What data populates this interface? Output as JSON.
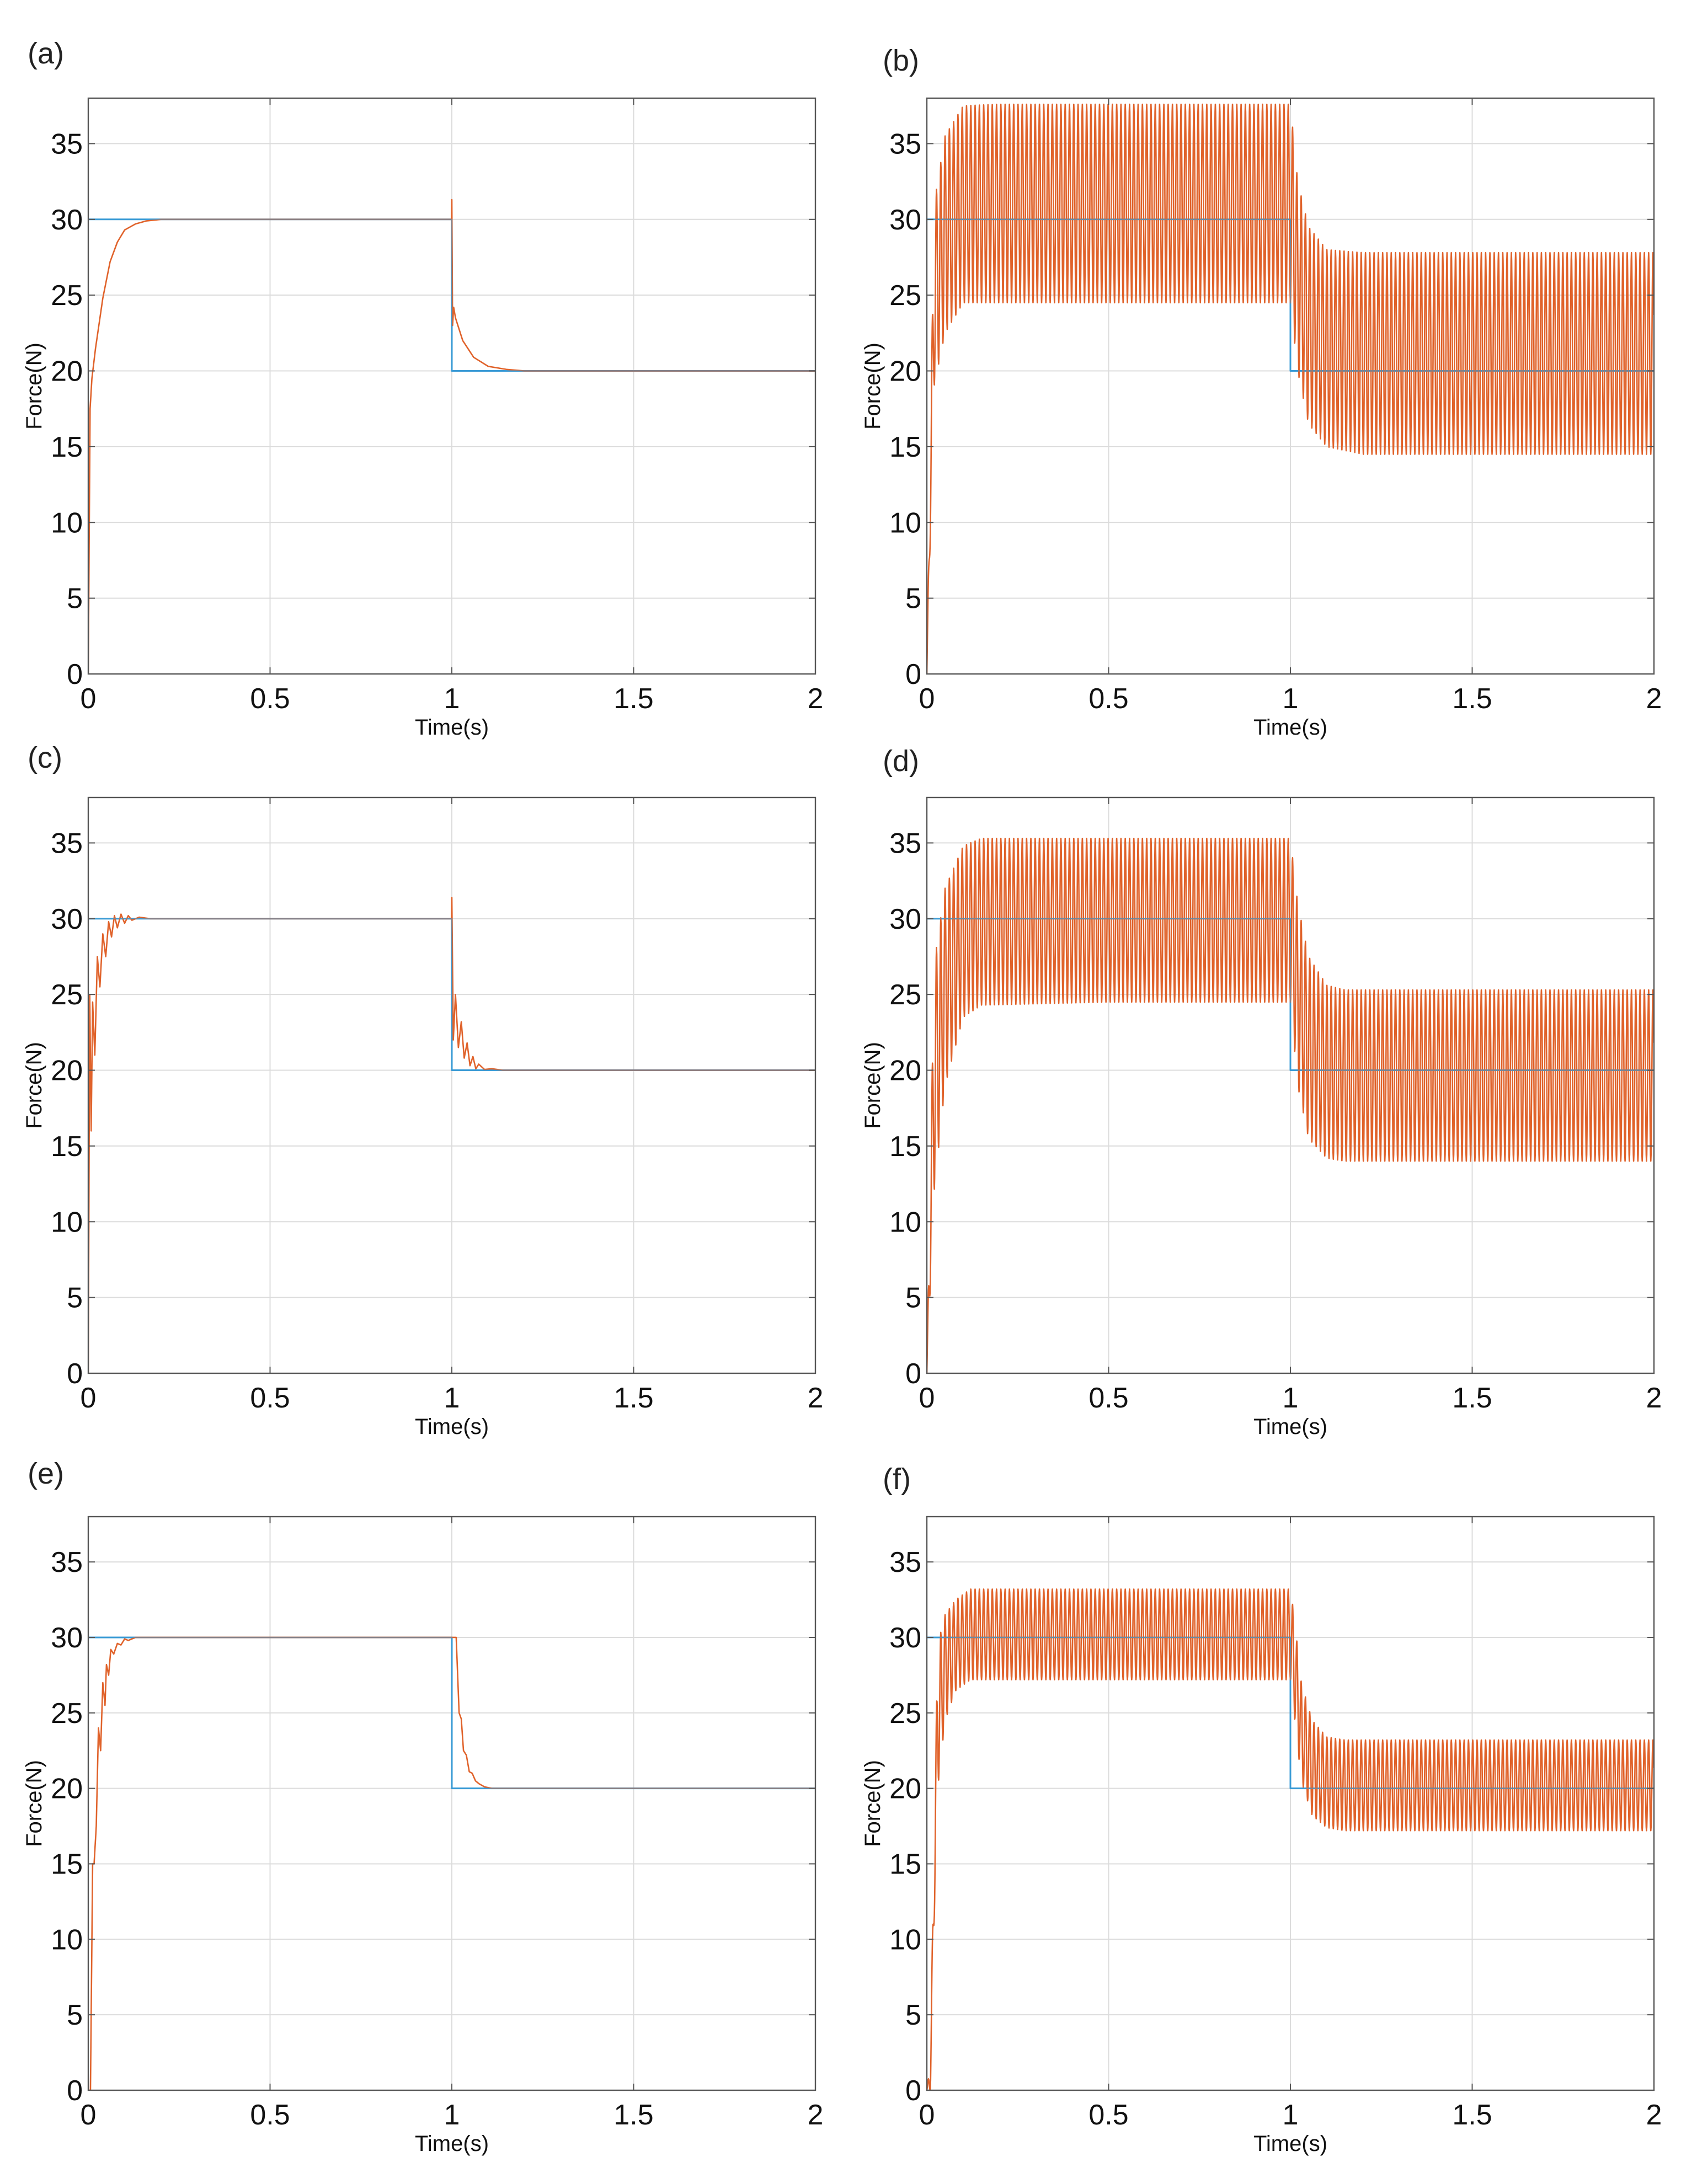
{
  "colors": {
    "reference": "#3a9bd6",
    "response": "#e0622a",
    "grid": "#dcdcdc",
    "frame": "#555555"
  },
  "chart_data": [
    {
      "id": "a",
      "panel_label": "(a)",
      "type": "line",
      "xlabel": "Time(s)",
      "ylabel": "Force(N)",
      "xlim": [
        0,
        2
      ],
      "ylim": [
        0,
        38
      ],
      "xticks": [
        0,
        0.5,
        1,
        1.5,
        2
      ],
      "xtick_labels": [
        "0",
        "0.5",
        "1",
        "1.5",
        "2"
      ],
      "yticks": [
        0,
        5,
        10,
        15,
        20,
        25,
        30,
        35
      ],
      "ytick_labels": [
        "0",
        "5",
        "10",
        "15",
        "20",
        "25",
        "30",
        "35"
      ],
      "grid": true,
      "legend": "none",
      "series": [
        {
          "role": "reference",
          "x": [
            0,
            1,
            1,
            2
          ],
          "y": [
            30,
            30,
            20,
            20
          ]
        },
        {
          "role": "response",
          "x": [
            0,
            0.005,
            0.01,
            0.02,
            0.04,
            0.06,
            0.08,
            0.1,
            0.13,
            0.16,
            0.2,
            0.3,
            0.5,
            0.999,
            1.0,
            1.002,
            1.005,
            1.01,
            1.03,
            1.06,
            1.1,
            1.15,
            1.2,
            1.5,
            2.0
          ],
          "y": [
            0,
            17.5,
            19.5,
            21.5,
            24.8,
            27.2,
            28.5,
            29.3,
            29.7,
            29.9,
            30,
            30,
            30,
            30,
            31.3,
            23.0,
            24.2,
            23.5,
            22.0,
            20.9,
            20.3,
            20.1,
            20,
            20,
            20
          ]
        }
      ]
    },
    {
      "id": "b",
      "panel_label": "(b)",
      "type": "line",
      "xlabel": "Time(s)",
      "ylabel": "Force(N)",
      "xlim": [
        0,
        2
      ],
      "ylim": [
        0,
        38
      ],
      "xticks": [
        0,
        0.5,
        1,
        1.5,
        2
      ],
      "xtick_labels": [
        "0",
        "0.5",
        "1",
        "1.5",
        "2"
      ],
      "yticks": [
        0,
        5,
        10,
        15,
        20,
        25,
        30,
        35
      ],
      "ytick_labels": [
        "0",
        "5",
        "10",
        "15",
        "20",
        "25",
        "30",
        "35"
      ],
      "grid": true,
      "legend": "none",
      "series": [
        {
          "role": "reference",
          "x": [
            0,
            1,
            1,
            2
          ],
          "y": [
            30,
            30,
            20,
            20
          ]
        },
        {
          "role": "response",
          "oscillation_period": 0.0118,
          "x": [
            0,
            0.02,
            0.05,
            0.1,
            0.2,
            0.5,
            0.999,
            1.0,
            1.02,
            1.05,
            1.1,
            1.2,
            1.5,
            2.0
          ],
          "upper": [
            0,
            31,
            35.5,
            37.5,
            37.6,
            37.6,
            37.6,
            37.6,
            32.5,
            29.5,
            28,
            27.8,
            27.8,
            27.8
          ],
          "lower": [
            0,
            19,
            22.5,
            24.5,
            24.5,
            24.5,
            24.5,
            24.5,
            20,
            16.5,
            15,
            14.5,
            14.5,
            14.5
          ]
        }
      ]
    },
    {
      "id": "c",
      "panel_label": "(c)",
      "type": "line",
      "xlabel": "Time(s)",
      "ylabel": "Force(N)",
      "xlim": [
        0,
        2
      ],
      "ylim": [
        0,
        38
      ],
      "xticks": [
        0,
        0.5,
        1,
        1.5,
        2
      ],
      "xtick_labels": [
        "0",
        "0.5",
        "1",
        "1.5",
        "2"
      ],
      "yticks": [
        0,
        5,
        10,
        15,
        20,
        25,
        30,
        35
      ],
      "ytick_labels": [
        "0",
        "5",
        "10",
        "15",
        "20",
        "25",
        "30",
        "35"
      ],
      "grid": true,
      "legend": "none",
      "series": [
        {
          "role": "reference",
          "x": [
            0,
            1,
            1,
            2
          ],
          "y": [
            30,
            30,
            20,
            20
          ]
        },
        {
          "role": "response",
          "x": [
            0,
            0.004,
            0.008,
            0.012,
            0.018,
            0.025,
            0.032,
            0.04,
            0.048,
            0.056,
            0.064,
            0.072,
            0.08,
            0.09,
            0.1,
            0.11,
            0.12,
            0.14,
            0.17,
            0.2,
            0.25,
            0.5,
            0.999,
            1.0,
            1.004,
            1.01,
            1.018,
            1.026,
            1.034,
            1.042,
            1.05,
            1.058,
            1.066,
            1.074,
            1.09,
            1.11,
            1.14,
            1.2,
            1.5,
            2.0
          ],
          "y": [
            0,
            25,
            16,
            24.5,
            21,
            27.5,
            25.5,
            29,
            27.5,
            29.8,
            28.8,
            30.2,
            29.4,
            30.3,
            29.7,
            30.2,
            29.9,
            30.1,
            30,
            30,
            30,
            30,
            30,
            31.4,
            22,
            25,
            21.5,
            23.2,
            20.8,
            21.8,
            20.3,
            20.9,
            20.1,
            20.4,
            20.05,
            20.1,
            20,
            20,
            20,
            20
          ]
        }
      ]
    },
    {
      "id": "d",
      "panel_label": "(d)",
      "type": "line",
      "xlabel": "Time(s)",
      "ylabel": "Force(N)",
      "xlim": [
        0,
        2
      ],
      "ylim": [
        0,
        38
      ],
      "xticks": [
        0,
        0.5,
        1,
        1.5,
        2
      ],
      "xtick_labels": [
        "0",
        "0.5",
        "1",
        "1.5",
        "2"
      ],
      "yticks": [
        0,
        5,
        10,
        15,
        20,
        25,
        30,
        35
      ],
      "ytick_labels": [
        "0",
        "5",
        "10",
        "15",
        "20",
        "25",
        "30",
        "35"
      ],
      "grid": true,
      "legend": "none",
      "series": [
        {
          "role": "reference",
          "x": [
            0,
            1,
            1,
            2
          ],
          "y": [
            30,
            30,
            20,
            20
          ]
        },
        {
          "role": "response",
          "oscillation_period": 0.0118,
          "x": [
            0,
            0.02,
            0.05,
            0.1,
            0.15,
            0.5,
            0.999,
            1.0,
            1.02,
            1.05,
            1.1,
            1.15,
            1.5,
            2.0
          ],
          "upper": [
            0,
            27,
            32,
            34.8,
            35.3,
            35.3,
            35.3,
            35.3,
            31,
            27.5,
            25.6,
            25.3,
            25.3,
            25.3
          ],
          "lower": [
            0,
            12,
            19,
            23.5,
            24.3,
            24.5,
            24.5,
            24.5,
            19,
            15.5,
            14.2,
            14,
            14,
            14
          ]
        }
      ]
    },
    {
      "id": "e",
      "panel_label": "(e)",
      "type": "line",
      "xlabel": "Time(s)",
      "ylabel": "Force(N)",
      "xlim": [
        0,
        2
      ],
      "ylim": [
        0,
        38
      ],
      "xticks": [
        0,
        0.5,
        1,
        1.5,
        2
      ],
      "xtick_labels": [
        "0",
        "0.5",
        "1",
        "1.5",
        "2"
      ],
      "yticks": [
        0,
        5,
        10,
        15,
        20,
        25,
        30,
        35
      ],
      "ytick_labels": [
        "0",
        "5",
        "10",
        "15",
        "20",
        "25",
        "30",
        "35"
      ],
      "grid": true,
      "legend": "none",
      "series": [
        {
          "role": "reference",
          "x": [
            0,
            1,
            1,
            2
          ],
          "y": [
            30,
            30,
            20,
            20
          ]
        },
        {
          "role": "response",
          "x": [
            0,
            0.006,
            0.012,
            0.016,
            0.022,
            0.028,
            0.034,
            0.04,
            0.046,
            0.05,
            0.056,
            0.062,
            0.07,
            0.08,
            0.09,
            0.1,
            0.11,
            0.13,
            0.16,
            0.2,
            0.5,
            1.0,
            1.012,
            1.02,
            1.026,
            1.032,
            1.04,
            1.048,
            1.056,
            1.065,
            1.075,
            1.09,
            1.11,
            1.15,
            1.5,
            2.0
          ],
          "y": [
            0,
            0,
            15,
            15,
            17.5,
            24,
            22.5,
            27,
            25.5,
            28.2,
            27.5,
            29.2,
            28.9,
            29.6,
            29.5,
            29.9,
            29.8,
            30,
            30,
            30,
            30,
            30,
            30,
            25,
            24.6,
            22.5,
            22.2,
            21.1,
            21,
            20.5,
            20.3,
            20.1,
            20,
            20,
            20,
            20
          ]
        }
      ]
    },
    {
      "id": "f",
      "panel_label": "(f)",
      "type": "line",
      "xlabel": "Time(s)",
      "ylabel": "Force(N)",
      "xlim": [
        0,
        2
      ],
      "ylim": [
        0,
        38
      ],
      "xticks": [
        0,
        0.5,
        1,
        1.5,
        2
      ],
      "xtick_labels": [
        "0",
        "0.5",
        "1",
        "1.5",
        "2"
      ],
      "yticks": [
        0,
        5,
        10,
        15,
        20,
        25,
        30,
        35
      ],
      "ytick_labels": [
        "0",
        "5",
        "10",
        "15",
        "20",
        "25",
        "30",
        "35"
      ],
      "grid": true,
      "legend": "none",
      "series": [
        {
          "role": "reference",
          "x": [
            0,
            1,
            1,
            2
          ],
          "y": [
            30,
            30,
            20,
            20
          ]
        },
        {
          "role": "response",
          "oscillation_period": 0.0118,
          "x": [
            0,
            0.01,
            0.02,
            0.03,
            0.05,
            0.08,
            0.12,
            0.5,
            1.0,
            1.01,
            1.03,
            1.06,
            1.1,
            1.15,
            1.5,
            2.0
          ],
          "upper": [
            0,
            2,
            17,
            29.5,
            31.5,
            32.5,
            33.2,
            33.2,
            33.2,
            31.5,
            27,
            24.5,
            23.4,
            23.2,
            23.2,
            23.2
          ],
          "lower": [
            0,
            0,
            11,
            20,
            24.5,
            26.5,
            27.2,
            27.2,
            27.2,
            25,
            20.5,
            18.2,
            17.4,
            17.2,
            17.2,
            17.2
          ]
        }
      ]
    }
  ]
}
